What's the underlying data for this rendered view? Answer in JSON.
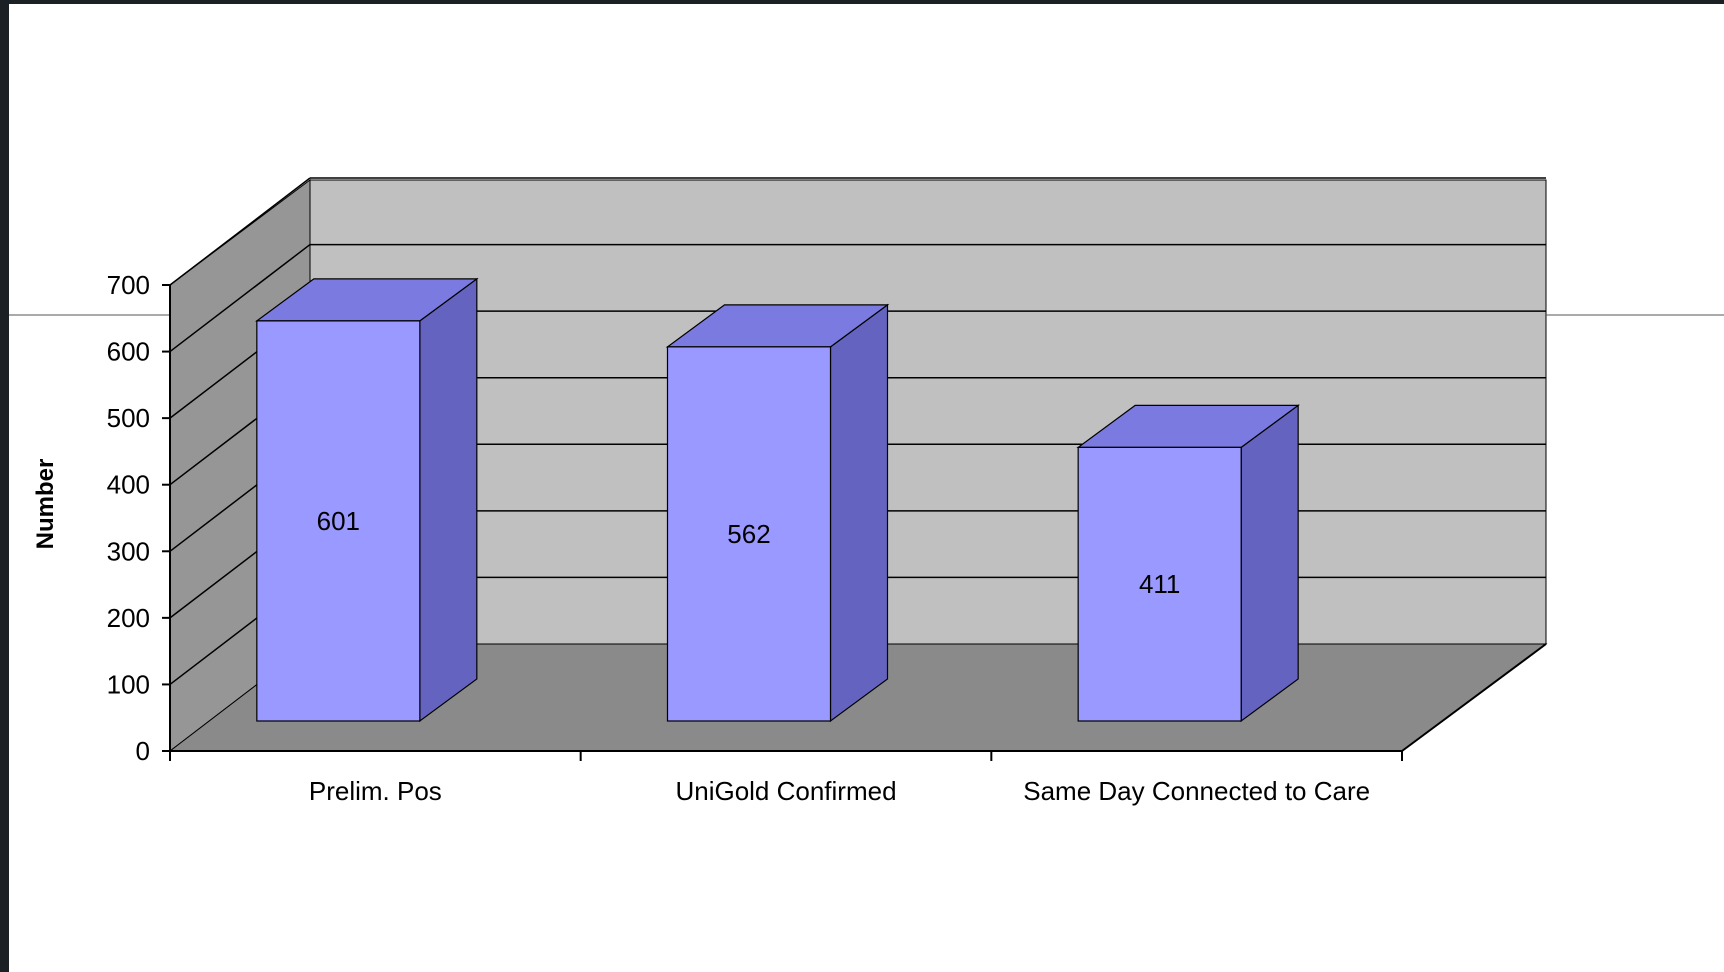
{
  "chart_data": {
    "type": "bar",
    "style": "3d-column",
    "categories": [
      "Prelim. Pos",
      "UniGold Confirmed",
      "Same Day Connected to Care"
    ],
    "values": [
      601,
      562,
      411
    ],
    "data_labels": [
      "601",
      "562",
      "411"
    ],
    "title": "",
    "xlabel": "",
    "ylabel": "Number",
    "ylim": [
      0,
      700
    ],
    "yticks": [
      "0",
      "100",
      "200",
      "300",
      "400",
      "500",
      "600",
      "700"
    ],
    "grid": true,
    "legend": "none",
    "colors": {
      "bar_front": "#9999ff",
      "bar_top": "#7a7ae0",
      "bar_side": "#6464c0",
      "back_wall": "#c0c0c0",
      "side_wall": "#969696",
      "floor": "#8a8a8a",
      "page_border": "#1b2025"
    }
  }
}
